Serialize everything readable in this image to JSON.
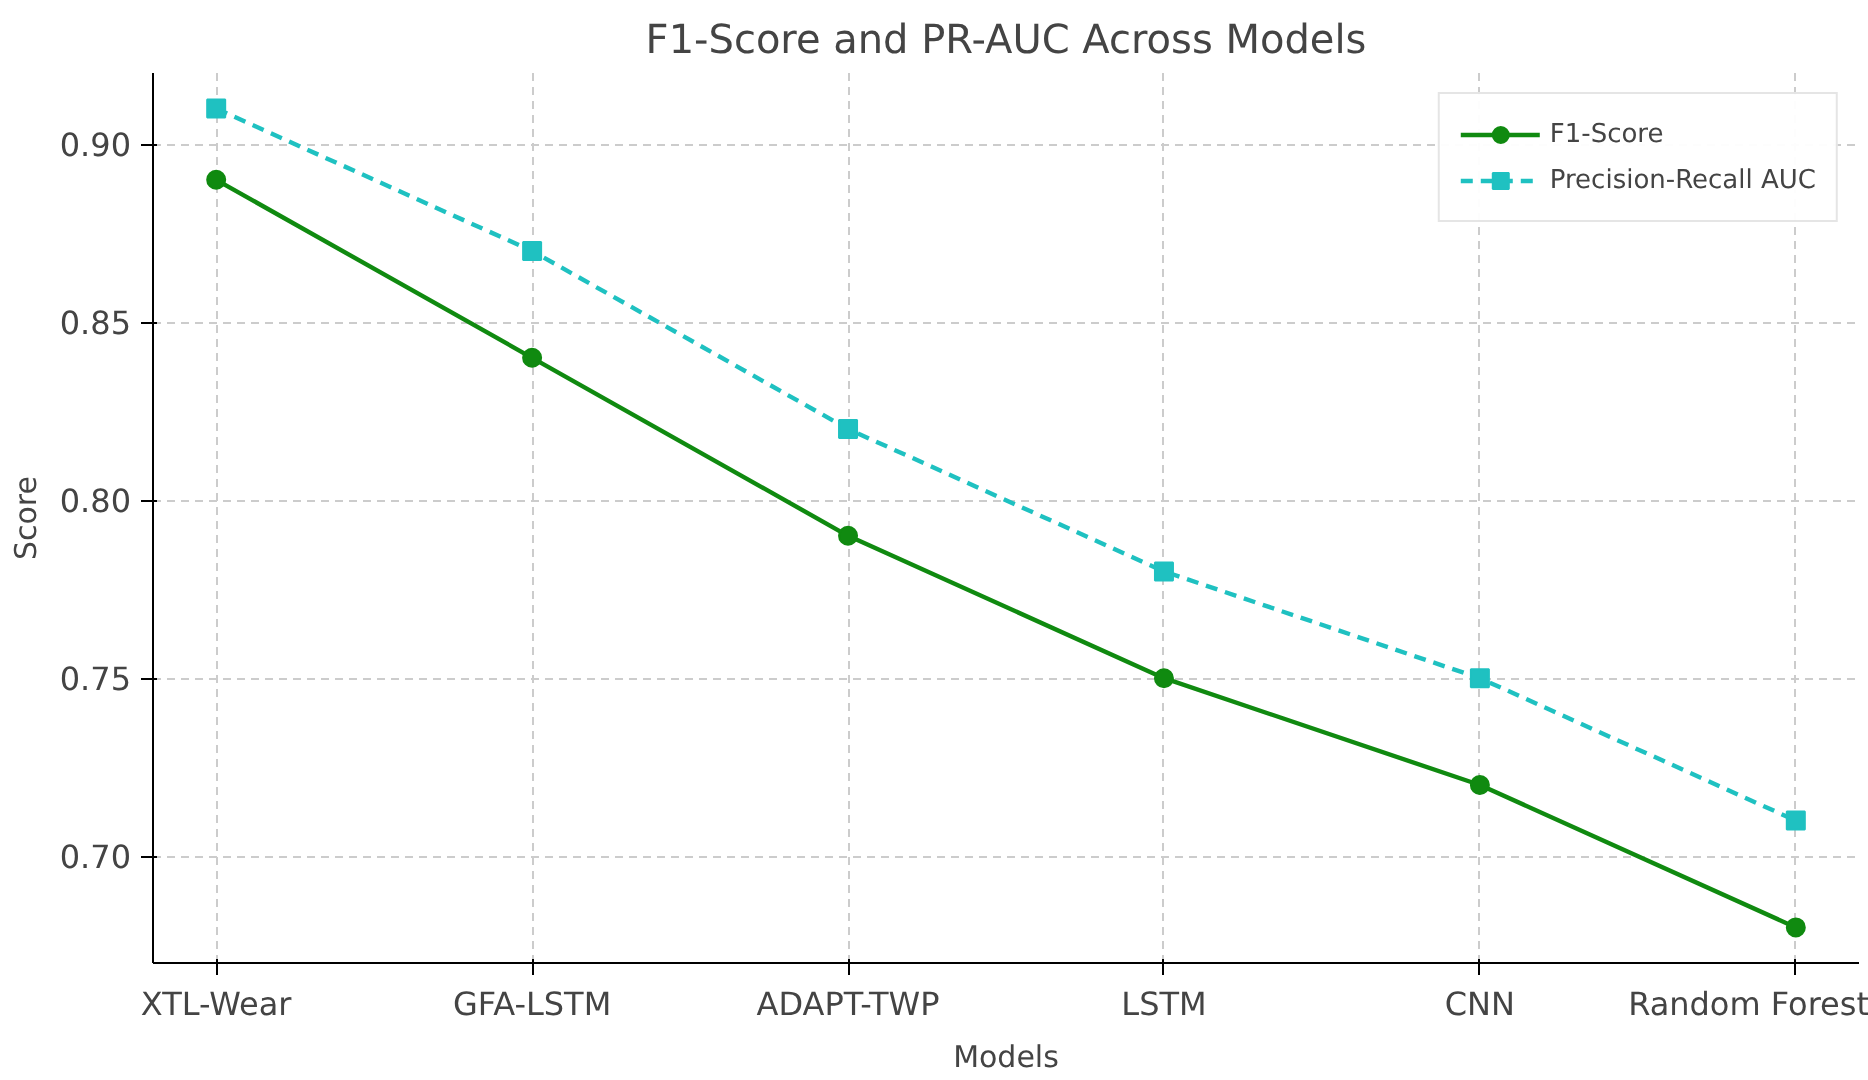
{
  "chart_data": {
    "type": "line",
    "title": "F1-Score and PR-AUC Across Models",
    "xlabel": "Models",
    "ylabel": "Score",
    "categories": [
      "XTL-Wear",
      "GFA-LSTM",
      "ADAPT-TWP",
      "LSTM",
      "CNN",
      "Random Forest"
    ],
    "series": [
      {
        "name": "F1-Score",
        "color": "#108a10",
        "values": [
          0.89,
          0.84,
          0.79,
          0.75,
          0.72,
          0.68
        ],
        "marker": "circle",
        "line_style": "solid"
      },
      {
        "name": "Precision-Recall AUC",
        "color": "#1fc1c1",
        "values": [
          0.91,
          0.87,
          0.82,
          0.78,
          0.75,
          0.71
        ],
        "marker": "square",
        "line_style": "dashed"
      }
    ],
    "ylim": [
      0.67,
      0.92
    ],
    "yticks": [
      {
        "value": 0.7,
        "label": "0.70"
      },
      0.75,
      {
        "value": 0.8,
        "label": "0.80"
      },
      0.85,
      {
        "value": 0.9,
        "label": "0.90"
      }
    ],
    "grid": true,
    "legend": "top right"
  }
}
